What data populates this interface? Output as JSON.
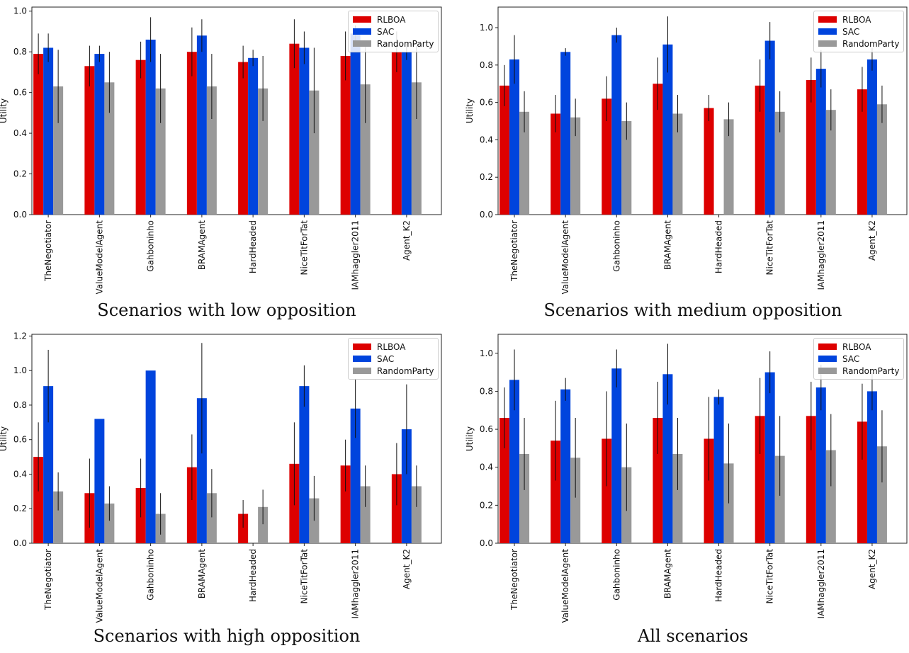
{
  "colors": {
    "RLBOA": "#dd0000",
    "SAC": "#0044dd",
    "RandomParty": "#999999"
  },
  "chart_data": [
    {
      "type": "bar",
      "caption": "Scenarios with low opposition",
      "ylabel": "Utility",
      "ylim": [
        0,
        1.02
      ],
      "yticks": [
        "0.0",
        "0.2",
        "0.4",
        "0.6",
        "0.8",
        "1.0"
      ],
      "legend_position": "top-right",
      "categories": [
        "TheNegotiator",
        "ValueModelAgent",
        "Gahboninho",
        "BRAMAgent",
        "HardHeaded",
        "NiceTitForTat",
        "IAMhaggler2011",
        "Agent_K2"
      ],
      "series": [
        {
          "name": "RLBOA",
          "values": [
            0.79,
            0.73,
            0.76,
            0.8,
            0.75,
            0.84,
            0.78,
            0.8
          ],
          "err": [
            0.1,
            0.1,
            0.09,
            0.12,
            0.08,
            0.12,
            0.12,
            0.1
          ]
        },
        {
          "name": "SAC",
          "values": [
            0.82,
            0.79,
            0.86,
            0.88,
            0.77,
            0.82,
            0.89,
            0.8
          ],
          "err": [
            0.07,
            0.04,
            0.11,
            0.08,
            0.04,
            0.08,
            0.04,
            0.04
          ]
        },
        {
          "name": "RandomParty",
          "values": [
            0.63,
            0.65,
            0.62,
            0.63,
            0.62,
            0.61,
            0.64,
            0.65
          ],
          "err": [
            0.18,
            0.15,
            0.17,
            0.16,
            0.16,
            0.21,
            0.19,
            0.18
          ]
        }
      ]
    },
    {
      "type": "bar",
      "caption": "Scenarios with medium opposition",
      "ylabel": "Utility",
      "ylim": [
        0,
        1.11
      ],
      "yticks": [
        "0.0",
        "0.2",
        "0.4",
        "0.6",
        "0.8",
        "1.0"
      ],
      "legend_position": "top-right",
      "categories": [
        "TheNegotiator",
        "ValueModelAgent",
        "Gahboninho",
        "BRAMAgent",
        "HardHeaded",
        "NiceTitForTat",
        "IAMhaggler2011",
        "Agent_K2"
      ],
      "series": [
        {
          "name": "RLBOA",
          "values": [
            0.69,
            0.54,
            0.62,
            0.7,
            0.57,
            0.69,
            0.72,
            0.67
          ],
          "err": [
            0.11,
            0.1,
            0.12,
            0.14,
            0.07,
            0.14,
            0.12,
            0.12
          ]
        },
        {
          "name": "SAC",
          "values": [
            0.83,
            0.87,
            0.96,
            0.91,
            0.0,
            0.93,
            0.78,
            0.83
          ],
          "err": [
            0.13,
            0.02,
            0.04,
            0.15,
            0.0,
            0.1,
            0.1,
            0.06
          ]
        },
        {
          "name": "RandomParty",
          "values": [
            0.55,
            0.52,
            0.5,
            0.54,
            0.51,
            0.55,
            0.56,
            0.59
          ],
          "err": [
            0.11,
            0.1,
            0.1,
            0.1,
            0.09,
            0.11,
            0.11,
            0.1
          ]
        }
      ]
    },
    {
      "type": "bar",
      "caption": "Scenarios with high opposition",
      "ylabel": "Utility",
      "ylim": [
        0,
        1.21
      ],
      "yticks": [
        "0.0",
        "0.2",
        "0.4",
        "0.6",
        "0.8",
        "1.0",
        "1.2"
      ],
      "legend_position": "top-right",
      "categories": [
        "TheNegotiator",
        "ValueModelAgent",
        "Gahboninho",
        "BRAMAgent",
        "HardHeaded",
        "NiceTitForTat",
        "IAMhaggler2011",
        "Agent_K2"
      ],
      "series": [
        {
          "name": "RLBOA",
          "values": [
            0.5,
            0.29,
            0.32,
            0.44,
            0.17,
            0.46,
            0.45,
            0.4
          ],
          "err": [
            0.2,
            0.2,
            0.17,
            0.19,
            0.08,
            0.24,
            0.15,
            0.18
          ]
        },
        {
          "name": "SAC",
          "values": [
            0.91,
            0.72,
            1.0,
            0.84,
            0.0,
            0.91,
            0.78,
            0.66
          ],
          "err": [
            0.21,
            0.0,
            0.0,
            0.32,
            0.0,
            0.12,
            0.17,
            0.26
          ]
        },
        {
          "name": "RandomParty",
          "values": [
            0.3,
            0.23,
            0.17,
            0.29,
            0.21,
            0.26,
            0.33,
            0.33
          ],
          "err": [
            0.11,
            0.1,
            0.12,
            0.14,
            0.1,
            0.13,
            0.12,
            0.12
          ]
        }
      ]
    },
    {
      "type": "bar",
      "caption": "All scenarios",
      "ylabel": "Utility",
      "ylim": [
        0,
        1.1
      ],
      "yticks": [
        "0.0",
        "0.2",
        "0.4",
        "0.6",
        "0.8",
        "1.0"
      ],
      "legend_position": "top-right",
      "categories": [
        "TheNegotiator",
        "ValueModelAgent",
        "Gahboninho",
        "BRAMAgent",
        "HardHeaded",
        "NiceTitForTat",
        "IAMhaggler2011",
        "Agent_K2"
      ],
      "series": [
        {
          "name": "RLBOA",
          "values": [
            0.66,
            0.54,
            0.55,
            0.66,
            0.55,
            0.67,
            0.67,
            0.64
          ],
          "err": [
            0.16,
            0.21,
            0.25,
            0.19,
            0.22,
            0.2,
            0.18,
            0.2
          ]
        },
        {
          "name": "SAC",
          "values": [
            0.86,
            0.81,
            0.92,
            0.89,
            0.77,
            0.9,
            0.82,
            0.8
          ],
          "err": [
            0.16,
            0.06,
            0.1,
            0.16,
            0.04,
            0.11,
            0.12,
            0.1
          ]
        },
        {
          "name": "RandomParty",
          "values": [
            0.47,
            0.45,
            0.4,
            0.47,
            0.42,
            0.46,
            0.49,
            0.51
          ],
          "err": [
            0.19,
            0.21,
            0.23,
            0.19,
            0.21,
            0.21,
            0.19,
            0.19
          ]
        }
      ]
    }
  ]
}
